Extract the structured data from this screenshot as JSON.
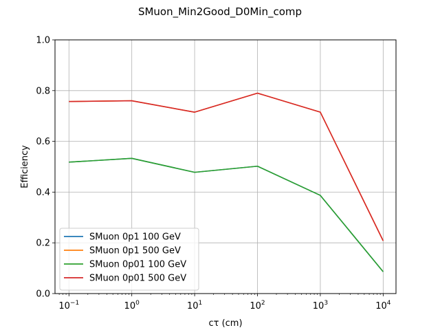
{
  "chart_data": {
    "type": "line",
    "title": "SMuon_Min2Good_D0Min_comp",
    "xlabel": "cτ (cm)",
    "ylabel": "Efficiency",
    "xscale": "log",
    "xlim": [
      0.06,
      16000
    ],
    "ylim": [
      0,
      1.0
    ],
    "grid": true,
    "legend_position": "lower-left",
    "x": [
      0.1,
      1,
      10,
      100,
      1000,
      10000
    ],
    "xticks": [
      {
        "value": 0.1,
        "base": "10",
        "exp": "−1"
      },
      {
        "value": 1,
        "base": "10",
        "exp": "0"
      },
      {
        "value": 10,
        "base": "10",
        "exp": "1"
      },
      {
        "value": 100,
        "base": "10",
        "exp": "2"
      },
      {
        "value": 1000,
        "base": "10",
        "exp": "3"
      },
      {
        "value": 10000,
        "base": "10",
        "exp": "4"
      }
    ],
    "yticks": [
      {
        "value": 0.0,
        "label": "0.0"
      },
      {
        "value": 0.2,
        "label": "0.2"
      },
      {
        "value": 0.4,
        "label": "0.4"
      },
      {
        "value": 0.6,
        "label": "0.6"
      },
      {
        "value": 0.8,
        "label": "0.8"
      },
      {
        "value": 1.0,
        "label": "1.0"
      }
    ],
    "series": [
      {
        "name": "SMuon 0p1 100 GeV",
        "color": "#1f77b4",
        "values": [
          0.518,
          0.533,
          0.478,
          0.502,
          0.387,
          0.086
        ]
      },
      {
        "name": "SMuon 0p1 500 GeV",
        "color": "#ff7f0e",
        "values": [
          0.757,
          0.76,
          0.715,
          0.79,
          0.715,
          0.208
        ]
      },
      {
        "name": "SMuon 0p01 100 GeV",
        "color": "#2ca02c",
        "values": [
          0.518,
          0.533,
          0.478,
          0.502,
          0.387,
          0.086
        ]
      },
      {
        "name": "SMuon 0p01 500 GeV",
        "color": "#d62728",
        "values": [
          0.757,
          0.76,
          0.715,
          0.79,
          0.715,
          0.208
        ]
      }
    ]
  }
}
